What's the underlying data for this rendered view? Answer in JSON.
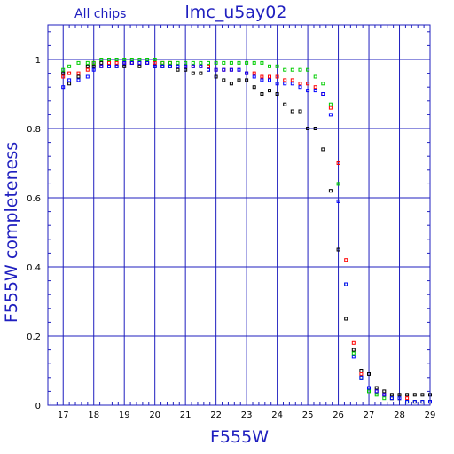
{
  "chart_data": {
    "type": "scatter",
    "title": "lmc_u5ay02",
    "subtitle": "All chips",
    "xlabel": "F555W",
    "ylabel": "F555W completeness",
    "xlim": [
      16.5,
      29
    ],
    "ylim": [
      0,
      1.1
    ],
    "x_ticks": [
      17,
      18,
      19,
      20,
      21,
      22,
      23,
      24,
      25,
      26,
      27,
      28,
      29
    ],
    "y_ticks": [
      0,
      0.2,
      0.4,
      0.6,
      0.8,
      1
    ],
    "grid": true,
    "colors": {
      "axis": "#1f1fbf",
      "grid": "#1f1fbf",
      "text": "#1f1fbf"
    },
    "series": [
      {
        "color": "#000000",
        "points": [
          [
            17.0,
            0.96
          ],
          [
            17.2,
            0.93
          ],
          [
            17.5,
            0.95
          ],
          [
            17.8,
            0.98
          ],
          [
            18.0,
            0.98
          ],
          [
            18.25,
            0.99
          ],
          [
            18.5,
            0.98
          ],
          [
            18.75,
            0.98
          ],
          [
            19.0,
            0.98
          ],
          [
            19.25,
            0.99
          ],
          [
            19.5,
            0.98
          ],
          [
            19.75,
            0.99
          ],
          [
            20.0,
            0.98
          ],
          [
            20.25,
            0.98
          ],
          [
            20.5,
            0.98
          ],
          [
            20.75,
            0.97
          ],
          [
            21.0,
            0.97
          ],
          [
            21.25,
            0.96
          ],
          [
            21.5,
            0.96
          ],
          [
            21.75,
            0.97
          ],
          [
            22.0,
            0.95
          ],
          [
            22.25,
            0.94
          ],
          [
            22.5,
            0.93
          ],
          [
            22.75,
            0.94
          ],
          [
            23.0,
            0.94
          ],
          [
            23.25,
            0.92
          ],
          [
            23.5,
            0.9
          ],
          [
            23.75,
            0.91
          ],
          [
            24.0,
            0.9
          ],
          [
            24.25,
            0.87
          ],
          [
            24.5,
            0.85
          ],
          [
            24.75,
            0.85
          ],
          [
            25.0,
            0.8
          ],
          [
            25.25,
            0.8
          ],
          [
            25.5,
            0.74
          ],
          [
            25.75,
            0.62
          ],
          [
            26.0,
            0.45
          ],
          [
            26.25,
            0.25
          ],
          [
            26.5,
            0.16
          ],
          [
            26.75,
            0.1
          ],
          [
            27.0,
            0.09
          ],
          [
            27.25,
            0.05
          ],
          [
            27.5,
            0.04
          ],
          [
            27.75,
            0.03
          ],
          [
            28.0,
            0.03
          ],
          [
            28.25,
            0.03
          ],
          [
            28.5,
            0.03
          ],
          [
            28.75,
            0.03
          ],
          [
            29.0,
            0.03
          ]
        ]
      },
      {
        "color": "#ff0000",
        "points": [
          [
            17.0,
            0.95
          ],
          [
            17.2,
            0.96
          ],
          [
            17.5,
            0.96
          ],
          [
            17.8,
            0.97
          ],
          [
            18.0,
            0.99
          ],
          [
            18.25,
            0.98
          ],
          [
            18.5,
            0.99
          ],
          [
            18.75,
            0.99
          ],
          [
            19.0,
            0.99
          ],
          [
            19.25,
            0.99
          ],
          [
            19.5,
            0.99
          ],
          [
            19.75,
            0.99
          ],
          [
            20.0,
            0.99
          ],
          [
            20.25,
            0.99
          ],
          [
            20.5,
            0.99
          ],
          [
            20.75,
            0.98
          ],
          [
            21.0,
            0.98
          ],
          [
            21.25,
            0.98
          ],
          [
            21.5,
            0.98
          ],
          [
            21.75,
            0.98
          ],
          [
            22.0,
            0.97
          ],
          [
            22.25,
            0.97
          ],
          [
            22.5,
            0.97
          ],
          [
            22.75,
            0.97
          ],
          [
            23.0,
            0.96
          ],
          [
            23.25,
            0.96
          ],
          [
            23.5,
            0.95
          ],
          [
            23.75,
            0.95
          ],
          [
            24.0,
            0.95
          ],
          [
            24.25,
            0.94
          ],
          [
            24.5,
            0.94
          ],
          [
            24.75,
            0.93
          ],
          [
            25.0,
            0.93
          ],
          [
            25.25,
            0.92
          ],
          [
            25.5,
            0.9
          ],
          [
            25.75,
            0.86
          ],
          [
            26.0,
            0.7
          ],
          [
            26.25,
            0.42
          ],
          [
            26.5,
            0.18
          ],
          [
            26.75,
            0.09
          ],
          [
            27.0,
            0.05
          ],
          [
            27.25,
            0.04
          ],
          [
            27.5,
            0.03
          ],
          [
            27.75,
            0.02
          ],
          [
            28.0,
            0.02
          ],
          [
            28.25,
            0.02
          ],
          [
            28.5,
            0.01
          ],
          [
            28.75,
            0.01
          ],
          [
            29.0,
            0.01
          ]
        ]
      },
      {
        "color": "#00cc00",
        "points": [
          [
            17.0,
            0.97
          ],
          [
            17.2,
            0.98
          ],
          [
            17.5,
            0.99
          ],
          [
            17.8,
            0.99
          ],
          [
            18.0,
            0.99
          ],
          [
            18.25,
            1.0
          ],
          [
            18.5,
            1.0
          ],
          [
            18.75,
            1.0
          ],
          [
            19.0,
            1.0
          ],
          [
            19.25,
            1.0
          ],
          [
            19.5,
            1.0
          ],
          [
            19.75,
            1.0
          ],
          [
            20.0,
            1.0
          ],
          [
            20.25,
            0.99
          ],
          [
            20.5,
            0.99
          ],
          [
            20.75,
            0.99
          ],
          [
            21.0,
            0.99
          ],
          [
            21.25,
            0.99
          ],
          [
            21.5,
            0.99
          ],
          [
            21.75,
            0.99
          ],
          [
            22.0,
            0.99
          ],
          [
            22.25,
            0.99
          ],
          [
            22.5,
            0.99
          ],
          [
            22.75,
            0.99
          ],
          [
            23.0,
            0.99
          ],
          [
            23.25,
            0.99
          ],
          [
            23.5,
            0.99
          ],
          [
            23.75,
            0.98
          ],
          [
            24.0,
            0.98
          ],
          [
            24.25,
            0.97
          ],
          [
            24.5,
            0.97
          ],
          [
            24.75,
            0.97
          ],
          [
            25.0,
            0.97
          ],
          [
            25.25,
            0.95
          ],
          [
            25.5,
            0.93
          ],
          [
            25.75,
            0.87
          ],
          [
            26.0,
            0.64
          ],
          [
            26.25,
            0.35
          ],
          [
            26.5,
            0.15
          ],
          [
            26.75,
            0.08
          ],
          [
            27.0,
            0.04
          ],
          [
            27.25,
            0.03
          ],
          [
            27.5,
            0.02
          ],
          [
            27.75,
            0.02
          ],
          [
            28.0,
            0.02
          ],
          [
            28.25,
            0.01
          ],
          [
            28.5,
            0.01
          ],
          [
            28.75,
            0.01
          ],
          [
            29.0,
            0.01
          ]
        ]
      },
      {
        "color": "#0000ff",
        "points": [
          [
            17.0,
            0.92
          ],
          [
            17.2,
            0.94
          ],
          [
            17.5,
            0.94
          ],
          [
            17.8,
            0.95
          ],
          [
            18.0,
            0.97
          ],
          [
            18.25,
            0.98
          ],
          [
            18.5,
            0.98
          ],
          [
            18.75,
            0.98
          ],
          [
            19.0,
            0.99
          ],
          [
            19.25,
            0.99
          ],
          [
            19.5,
            0.99
          ],
          [
            19.75,
            0.99
          ],
          [
            20.0,
            0.98
          ],
          [
            20.25,
            0.98
          ],
          [
            20.5,
            0.98
          ],
          [
            20.75,
            0.98
          ],
          [
            21.0,
            0.98
          ],
          [
            21.25,
            0.98
          ],
          [
            21.5,
            0.98
          ],
          [
            21.75,
            0.97
          ],
          [
            22.0,
            0.97
          ],
          [
            22.25,
            0.97
          ],
          [
            22.5,
            0.97
          ],
          [
            22.75,
            0.97
          ],
          [
            23.0,
            0.96
          ],
          [
            23.25,
            0.95
          ],
          [
            23.5,
            0.94
          ],
          [
            23.75,
            0.94
          ],
          [
            24.0,
            0.93
          ],
          [
            24.25,
            0.93
          ],
          [
            24.5,
            0.93
          ],
          [
            24.75,
            0.92
          ],
          [
            25.0,
            0.91
          ],
          [
            25.25,
            0.91
          ],
          [
            25.5,
            0.9
          ],
          [
            25.75,
            0.84
          ],
          [
            26.0,
            0.59
          ],
          [
            26.25,
            0.35
          ],
          [
            26.5,
            0.14
          ],
          [
            26.75,
            0.08
          ],
          [
            27.0,
            0.05
          ],
          [
            27.25,
            0.04
          ],
          [
            27.5,
            0.03
          ],
          [
            27.75,
            0.02
          ],
          [
            28.0,
            0.02
          ],
          [
            28.25,
            0.01
          ],
          [
            28.5,
            0.01
          ],
          [
            28.75,
            0.01
          ],
          [
            29.0,
            0.01
          ]
        ]
      }
    ]
  }
}
